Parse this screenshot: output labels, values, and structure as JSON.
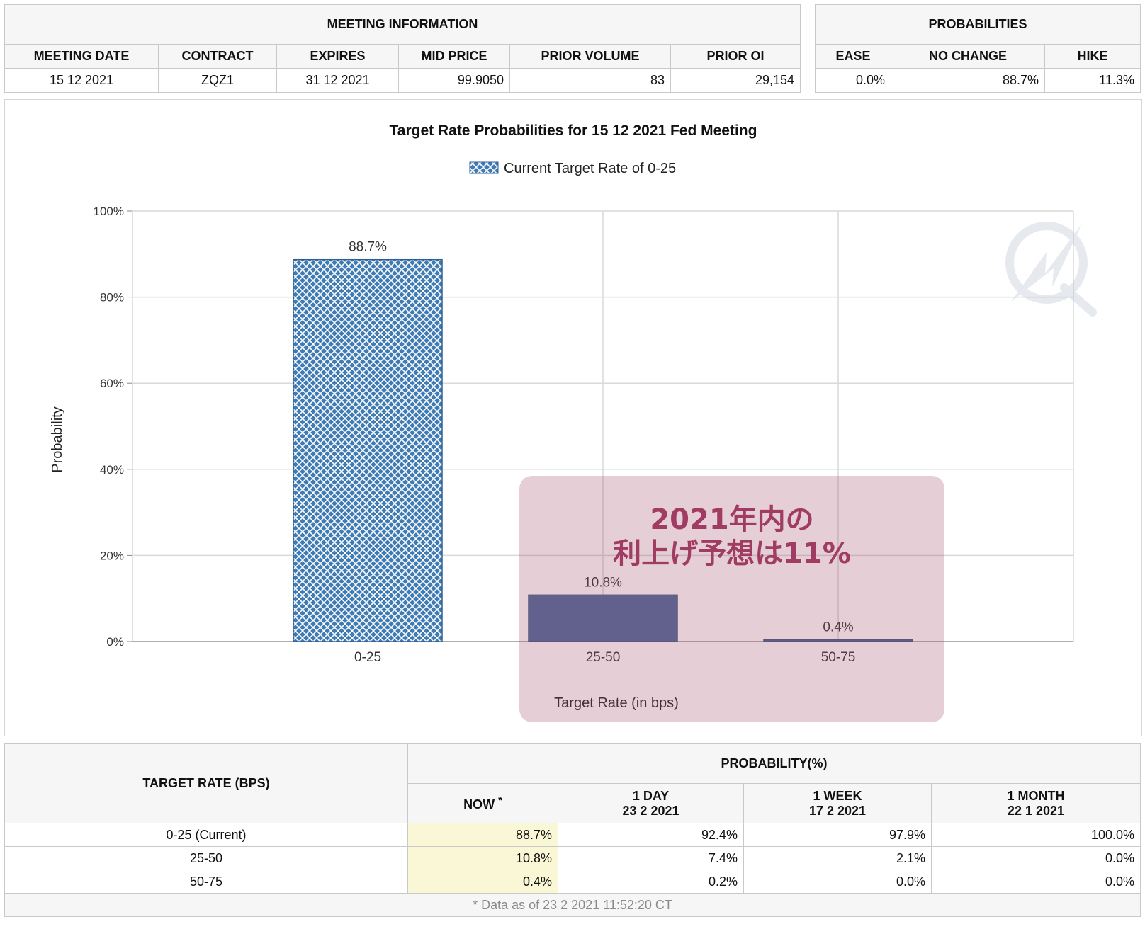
{
  "meeting_info": {
    "title": "MEETING INFORMATION",
    "headers": [
      "MEETING DATE",
      "CONTRACT",
      "EXPIRES",
      "MID PRICE",
      "PRIOR VOLUME",
      "PRIOR OI"
    ],
    "values": [
      "15 12 2021",
      "ZQZ1",
      "31 12 2021",
      "99.9050",
      "83",
      "29,154"
    ]
  },
  "probabilities": {
    "title": "PROBABILITIES",
    "headers": [
      "EASE",
      "NO CHANGE",
      "HIKE"
    ],
    "values": [
      "0.0%",
      "88.7%",
      "11.3%"
    ]
  },
  "chart_data": {
    "type": "bar",
    "title": "Target Rate Probabilities for 15 12 2021 Fed Meeting",
    "legend": "Current Target Rate of 0-25",
    "legend_position": "top-center",
    "categories": [
      "0-25",
      "25-50",
      "50-75"
    ],
    "values": [
      88.7,
      10.8,
      0.4
    ],
    "data_labels": [
      "88.7%",
      "10.8%",
      "0.4%"
    ],
    "ylabel": "Probability",
    "xlabel": "Target Rate (in bps)",
    "ylim": [
      0,
      100
    ],
    "yticks": [
      "0%",
      "20%",
      "40%",
      "60%",
      "80%",
      "100%"
    ],
    "grid": true,
    "colors": {
      "current": "#3f7bb4",
      "other": "#48689a",
      "grid": "#d9d9d9"
    }
  },
  "callout": {
    "line1": "2021年内の",
    "line2": "利上げ予想は11%",
    "color": "#a03c62"
  },
  "prob_table": {
    "target_header": "TARGET RATE (BPS)",
    "group_header": "PROBABILITY(%)",
    "columns": [
      {
        "label": "NOW",
        "mark": "*",
        "sub": ""
      },
      {
        "label": "1 DAY",
        "sub": "23 2 2021"
      },
      {
        "label": "1 WEEK",
        "sub": "17 2 2021"
      },
      {
        "label": "1 MONTH",
        "sub": "22 1 2021"
      }
    ],
    "rows": [
      {
        "rate": "0-25 (Current)",
        "values": [
          "88.7%",
          "92.4%",
          "97.9%",
          "100.0%"
        ]
      },
      {
        "rate": "25-50",
        "values": [
          "10.8%",
          "7.4%",
          "2.1%",
          "0.0%"
        ]
      },
      {
        "rate": "50-75",
        "values": [
          "0.4%",
          "0.2%",
          "0.0%",
          "0.0%"
        ]
      }
    ],
    "footnote": "* Data as of 23 2 2021 11:52:20 CT"
  }
}
